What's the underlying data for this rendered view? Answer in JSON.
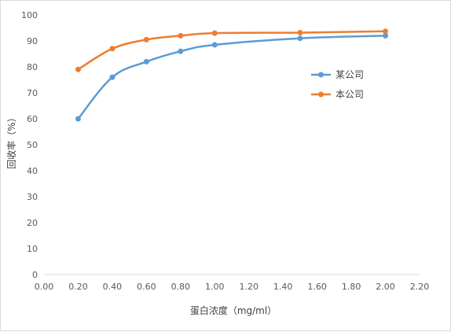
{
  "chart_data": {
    "type": "line",
    "title": "",
    "xlabel": "蛋白浓度（mg/ml）",
    "ylabel": "回收率（%）",
    "xlim": [
      0,
      2.2
    ],
    "ylim": [
      0,
      100
    ],
    "x_ticks": [
      "0.00",
      "0.20",
      "0.40",
      "0.60",
      "0.80",
      "1.00",
      "1.20",
      "1.40",
      "1.60",
      "1.80",
      "2.00",
      "2.20"
    ],
    "y_ticks": [
      "0",
      "10",
      "20",
      "30",
      "40",
      "50",
      "60",
      "70",
      "80",
      "90",
      "100"
    ],
    "legend_position": "right",
    "smooth": true,
    "grid": false,
    "series": [
      {
        "name": "某公司",
        "color": "#5b9bd5",
        "x": [
          0.2,
          0.4,
          0.6,
          0.8,
          1.0,
          1.5,
          2.0
        ],
        "values": [
          60,
          76,
          82,
          86,
          88.5,
          91,
          92
        ]
      },
      {
        "name": "本公司",
        "color": "#ed7d31",
        "x": [
          0.2,
          0.4,
          0.6,
          0.8,
          1.0,
          1.5,
          2.0
        ],
        "values": [
          79,
          87,
          90.5,
          92,
          93,
          93.2,
          93.7
        ]
      }
    ]
  }
}
